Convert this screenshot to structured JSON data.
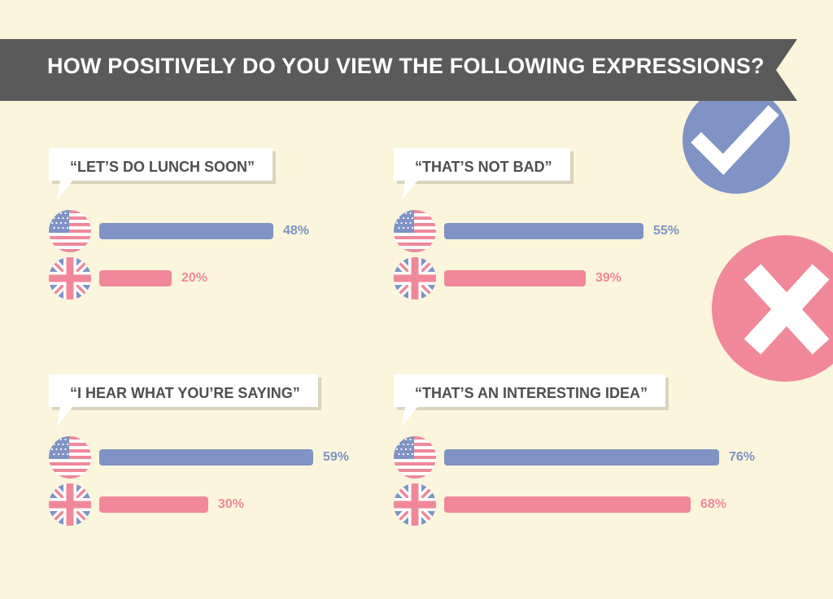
{
  "colors": {
    "background": "#faf5db",
    "banner": "#5a5a5a",
    "us": "#7f93c4",
    "uk": "#f0889a",
    "check_circle": "#7f93c4",
    "cross_circle": "#f0889a"
  },
  "icons": {
    "positive": "check-icon",
    "negative": "cross-icon",
    "us": "us-flag-icon",
    "uk": "uk-flag-icon"
  },
  "chart_data": {
    "type": "bar",
    "title": "HOW POSITIVELY DO YOU VIEW THE FOLLOWING EXPRESSIONS?",
    "value_suffix": "%",
    "ylim": [
      0,
      100
    ],
    "categories": [
      "“LET’S DO LUNCH SOON”",
      "“THAT’S NOT BAD”",
      "“I HEAR WHAT YOU’RE SAYING”",
      "“THAT’S AN INTERESTING IDEA”"
    ],
    "series": [
      {
        "values": [
          48,
          55,
          59,
          76
        ]
      },
      {
        "values": [
          20,
          39,
          30,
          68
        ]
      }
    ]
  }
}
